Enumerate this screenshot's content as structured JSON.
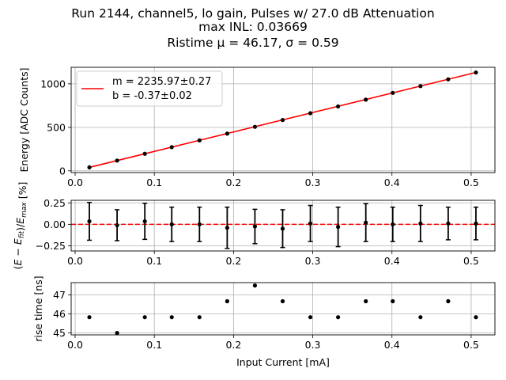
{
  "figure": {
    "title_lines": [
      "Run 2144, channel5, lo gain, Pulses w/ 27.0 dB Attenuation",
      "max INL: 0.03669",
      "Ristime μ = 46.17, σ = 0.59"
    ]
  },
  "colors": {
    "fit_line": "#ff0000",
    "points": "#000000",
    "grid": "#b0b0b0"
  },
  "chart_data": [
    {
      "type": "scatter",
      "panel": "energy",
      "ylabel": "Energy [ADC Counts]",
      "xlim": [
        -0.005,
        0.53
      ],
      "ylim": [
        -20,
        1190
      ],
      "x_ticks": [
        "0.0",
        "0.1",
        "0.2",
        "0.3",
        "0.4",
        "0.5"
      ],
      "y_ticks": [
        "0",
        "500",
        "1000"
      ],
      "grid": true,
      "legend_position": "top-left",
      "legend": [
        "m = 2235.97±0.27",
        "b = -0.37±0.02"
      ],
      "fit": {
        "slope": 2235.97,
        "intercept": -0.37
      },
      "x": [
        0.018,
        0.053,
        0.088,
        0.122,
        0.157,
        0.192,
        0.227,
        0.262,
        0.297,
        0.332,
        0.367,
        0.401,
        0.436,
        0.471,
        0.506
      ],
      "y": [
        40,
        118,
        196,
        272,
        350,
        428,
        506,
        584,
        662,
        740,
        818,
        896,
        974,
        1052,
        1130
      ]
    },
    {
      "type": "scatter",
      "panel": "residual",
      "ylabel": "(E − E_fit)/E_max [%]",
      "xlim": [
        -0.005,
        0.53
      ],
      "ylim": [
        -0.31,
        0.28
      ],
      "x_ticks": [
        "0.0",
        "0.1",
        "0.2",
        "0.3",
        "0.4",
        "0.5"
      ],
      "y_ticks": [
        "0.25",
        "0.00",
        "−0.25"
      ],
      "grid": true,
      "x": [
        0.018,
        0.053,
        0.088,
        0.122,
        0.157,
        0.192,
        0.227,
        0.262,
        0.297,
        0.332,
        0.367,
        0.401,
        0.436,
        0.471,
        0.506
      ],
      "y": [
        0.035,
        -0.01,
        0.035,
        0.0,
        0.0,
        -0.04,
        -0.025,
        -0.05,
        0.01,
        -0.03,
        0.02,
        0.0,
        0.01,
        0.01,
        0.01
      ],
      "yerr": [
        0.22,
        0.18,
        0.21,
        0.2,
        0.2,
        0.24,
        0.2,
        0.22,
        0.21,
        0.23,
        0.22,
        0.2,
        0.21,
        0.19,
        0.19
      ]
    },
    {
      "type": "scatter",
      "panel": "risetime",
      "xlabel": "Input Current [mA]",
      "ylabel": "rise time [ns]",
      "xlim": [
        -0.005,
        0.53
      ],
      "ylim": [
        44.9,
        47.65
      ],
      "x_ticks": [
        "0.0",
        "0.1",
        "0.2",
        "0.3",
        "0.4",
        "0.5"
      ],
      "y_ticks": [
        "45",
        "46",
        "47"
      ],
      "grid": true,
      "x": [
        0.018,
        0.053,
        0.088,
        0.122,
        0.157,
        0.192,
        0.227,
        0.262,
        0.297,
        0.332,
        0.367,
        0.401,
        0.436,
        0.471,
        0.506
      ],
      "y": [
        45.83,
        45.0,
        45.83,
        45.83,
        45.83,
        46.67,
        47.5,
        46.67,
        45.83,
        45.83,
        46.67,
        46.67,
        45.83,
        46.67,
        45.83
      ]
    }
  ]
}
